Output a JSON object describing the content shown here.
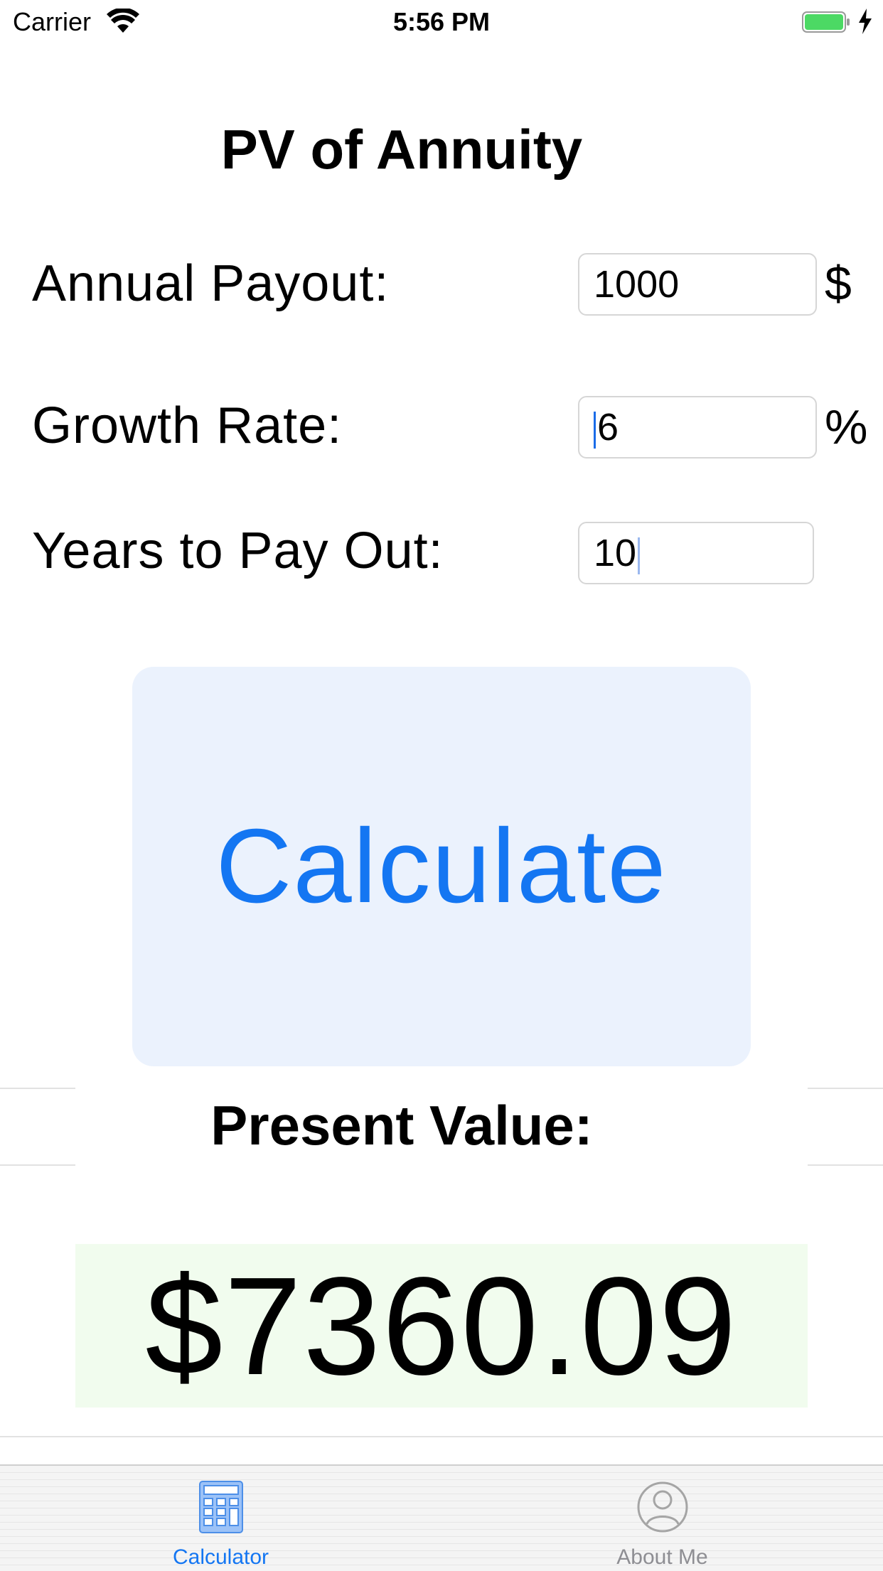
{
  "status_bar": {
    "carrier": "Carrier",
    "time": "5:56 PM",
    "wifi_icon": "wifi-icon",
    "battery_icon": "battery-icon",
    "charging_icon": "bolt-icon",
    "battery_color": "#4cd964"
  },
  "title": "PV of Annuity",
  "form": {
    "annual_payout": {
      "label": "Annual Payout:",
      "value": "1000",
      "unit": "$"
    },
    "growth_rate": {
      "label": "Growth Rate:",
      "value": "6",
      "unit": "%"
    },
    "years": {
      "label": "Years to Pay Out:",
      "value": "10"
    }
  },
  "calculate_button": {
    "label": "Calculate",
    "text_color": "#1476f2",
    "background": "#ebf2fd"
  },
  "result": {
    "label": "Present Value:",
    "value": "$7360.09",
    "background": "#f1fcee"
  },
  "tab_bar": {
    "tabs": [
      {
        "label": "Calculator",
        "icon": "calculator-icon",
        "selected": true,
        "color": "#1476f2"
      },
      {
        "label": "About Me",
        "icon": "person-icon",
        "selected": false,
        "color": "#8e8e93"
      }
    ]
  }
}
